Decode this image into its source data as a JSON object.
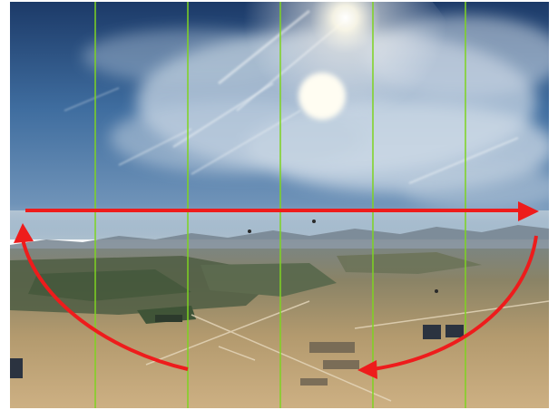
{
  "image": {
    "subject": "aerial-desert-sky-view",
    "sun_visible": true,
    "colors": {
      "sky_top": "#1f3f6e",
      "sky_mid": "#4b78a8",
      "horizon_haze": "#9fb6c9",
      "mountains": "#6d7c88",
      "ground_near": "#c9a878",
      "ground_far": "#7d7a62",
      "farmland": "#3f5a3a",
      "cloud": "#e8eef4",
      "sun": "#fffdf2"
    }
  },
  "overlays": {
    "guide_lines": {
      "count": 5,
      "color": "#7ed321"
    },
    "arrows": {
      "color": "#ee1c1c",
      "items": [
        {
          "name": "horizon-arrow-right",
          "direction": "right"
        },
        {
          "name": "curve-arrow-left-up",
          "direction": "up"
        },
        {
          "name": "curve-arrow-right-down",
          "direction": "down-left"
        }
      ]
    }
  }
}
